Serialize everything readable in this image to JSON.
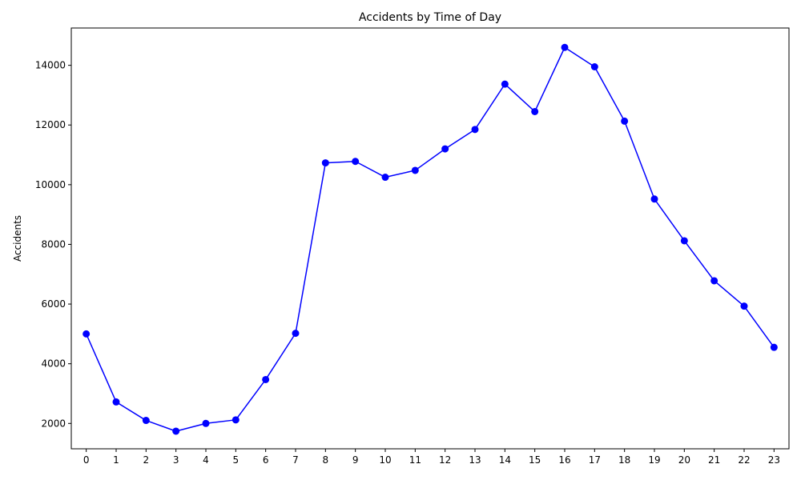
{
  "chart_data": {
    "type": "line",
    "title": "Accidents by Time of Day",
    "xlabel": "",
    "ylabel": "Accidents",
    "x": [
      0,
      1,
      2,
      3,
      4,
      5,
      6,
      7,
      8,
      9,
      10,
      11,
      12,
      13,
      14,
      15,
      16,
      17,
      18,
      19,
      20,
      21,
      22,
      23
    ],
    "xticks": [
      "0",
      "1",
      "2",
      "3",
      "4",
      "5",
      "6",
      "7",
      "8",
      "9",
      "10",
      "11",
      "12",
      "13",
      "14",
      "15",
      "16",
      "17",
      "18",
      "19",
      "20",
      "21",
      "22",
      "23"
    ],
    "series": [
      {
        "name": "",
        "color": "#0000ff",
        "marker": "circle",
        "values": [
          5000,
          2720,
          2100,
          1740,
          2000,
          2120,
          3470,
          5020,
          10730,
          10780,
          10250,
          10480,
          11200,
          11850,
          13370,
          12450,
          14600,
          13950,
          12130,
          9520,
          8120,
          6780,
          5930,
          4550
        ]
      }
    ],
    "xlim": [
      -0.5,
      23.5
    ],
    "ylim": [
      1150,
      15250
    ],
    "yticks": [
      2000,
      4000,
      6000,
      8000,
      10000,
      12000,
      14000
    ],
    "ytick_labels": [
      "2000",
      "4000",
      "6000",
      "8000",
      "10000",
      "12000",
      "14000"
    ],
    "grid": false,
    "legend": "none"
  }
}
